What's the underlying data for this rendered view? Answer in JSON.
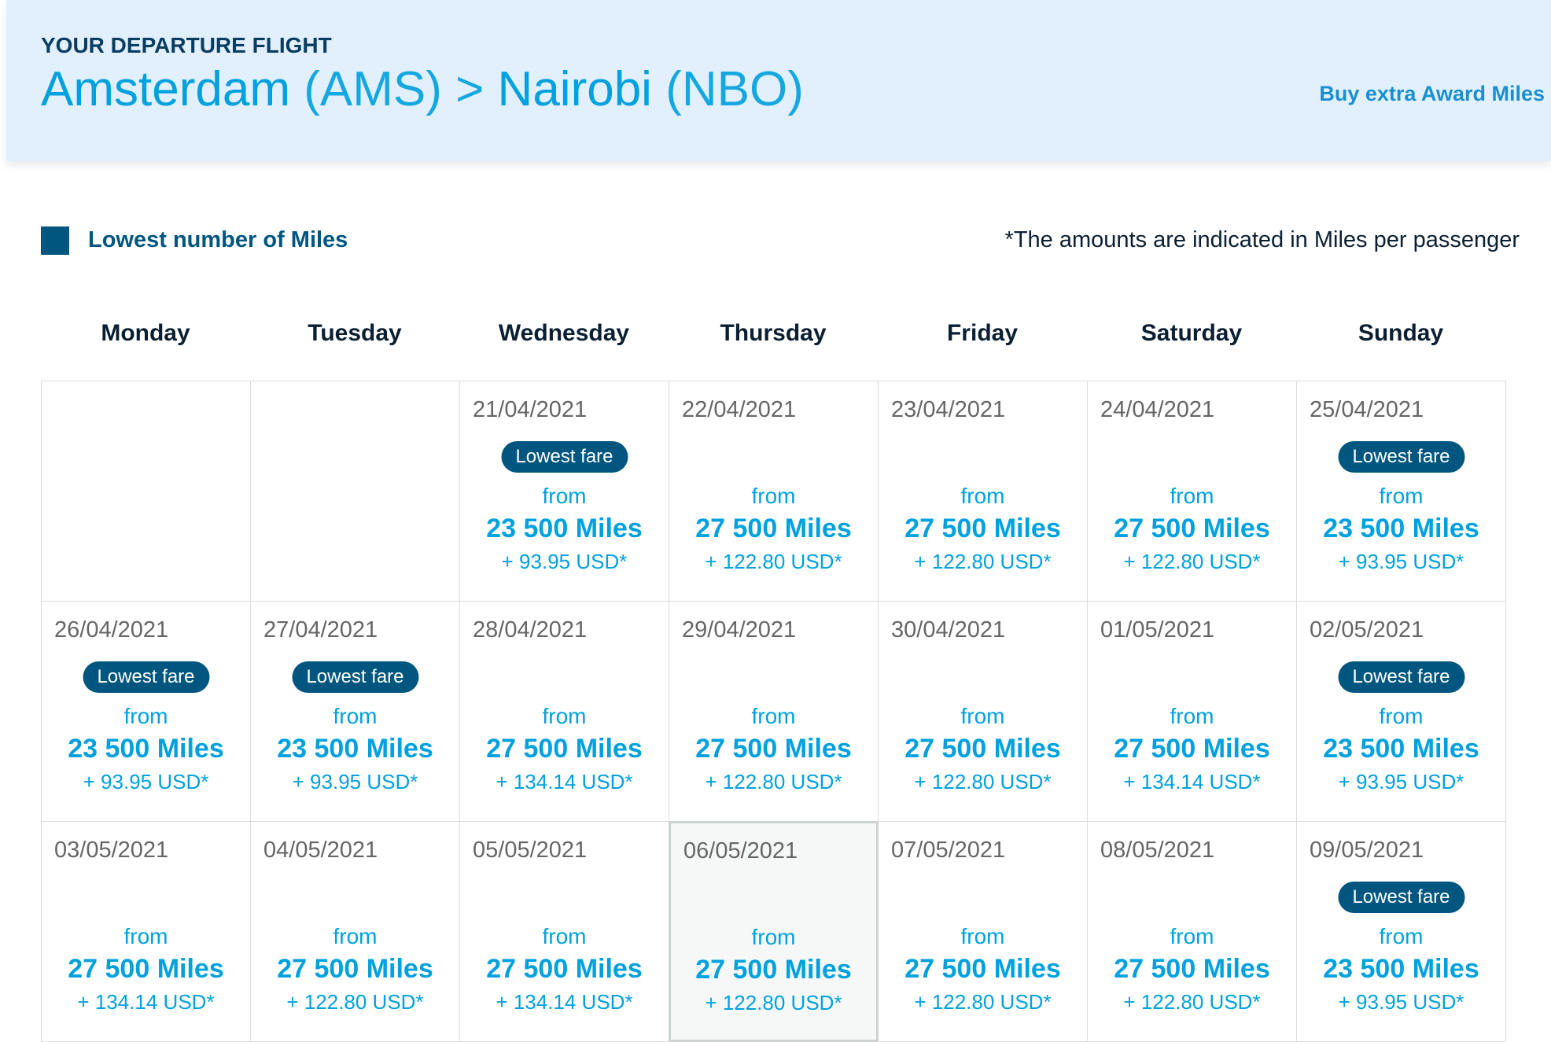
{
  "header": {
    "label": "YOUR DEPARTURE FLIGHT",
    "origin": "Amsterdam",
    "origin_code": "(AMS)",
    "separator": ">",
    "destination": "Nairobi",
    "destination_code": "(NBO)",
    "link": "Buy extra Award Miles"
  },
  "legend": {
    "label": "Lowest number of Miles"
  },
  "note": "*The amounts are indicated in Miles per passenger",
  "weekdays": [
    "Monday",
    "Tuesday",
    "Wednesday",
    "Thursday",
    "Friday",
    "Saturday",
    "Sunday"
  ],
  "calendar": {
    "rows": [
      [
        null,
        null,
        {
          "date": "21/04/2021",
          "badge": "Lowest fare",
          "from": "from",
          "miles": "23 500 Miles",
          "usd": "+ 93.95 USD*"
        },
        {
          "date": "22/04/2021",
          "from": "from",
          "miles": "27 500 Miles",
          "usd": "+ 122.80 USD*"
        },
        {
          "date": "23/04/2021",
          "from": "from",
          "miles": "27 500 Miles",
          "usd": "+ 122.80 USD*"
        },
        {
          "date": "24/04/2021",
          "from": "from",
          "miles": "27 500 Miles",
          "usd": "+ 122.80 USD*"
        },
        {
          "date": "25/04/2021",
          "badge": "Lowest fare",
          "from": "from",
          "miles": "23 500 Miles",
          "usd": "+ 93.95 USD*"
        }
      ],
      [
        {
          "date": "26/04/2021",
          "badge": "Lowest fare",
          "from": "from",
          "miles": "23 500 Miles",
          "usd": "+ 93.95 USD*"
        },
        {
          "date": "27/04/2021",
          "badge": "Lowest fare",
          "from": "from",
          "miles": "23 500 Miles",
          "usd": "+ 93.95 USD*"
        },
        {
          "date": "28/04/2021",
          "from": "from",
          "miles": "27 500 Miles",
          "usd": "+ 134.14 USD*"
        },
        {
          "date": "29/04/2021",
          "from": "from",
          "miles": "27 500 Miles",
          "usd": "+ 122.80 USD*"
        },
        {
          "date": "30/04/2021",
          "from": "from",
          "miles": "27 500 Miles",
          "usd": "+ 122.80 USD*"
        },
        {
          "date": "01/05/2021",
          "from": "from",
          "miles": "27 500 Miles",
          "usd": "+ 134.14 USD*"
        },
        {
          "date": "02/05/2021",
          "badge": "Lowest fare",
          "from": "from",
          "miles": "23 500 Miles",
          "usd": "+ 93.95 USD*"
        }
      ],
      [
        {
          "date": "03/05/2021",
          "from": "from",
          "miles": "27 500 Miles",
          "usd": "+ 134.14 USD*"
        },
        {
          "date": "04/05/2021",
          "from": "from",
          "miles": "27 500 Miles",
          "usd": "+ 122.80 USD*"
        },
        {
          "date": "05/05/2021",
          "from": "from",
          "miles": "27 500 Miles",
          "usd": "+ 134.14 USD*"
        },
        {
          "date": "06/05/2021",
          "from": "from",
          "miles": "27 500 Miles",
          "usd": "+ 122.80 USD*",
          "selected": true
        },
        {
          "date": "07/05/2021",
          "from": "from",
          "miles": "27 500 Miles",
          "usd": "+ 122.80 USD*"
        },
        {
          "date": "08/05/2021",
          "from": "from",
          "miles": "27 500 Miles",
          "usd": "+ 122.80 USD*"
        },
        {
          "date": "09/05/2021",
          "badge": "Lowest fare",
          "from": "from",
          "miles": "23 500 Miles",
          "usd": "+ 93.95 USD*"
        }
      ]
    ]
  }
}
